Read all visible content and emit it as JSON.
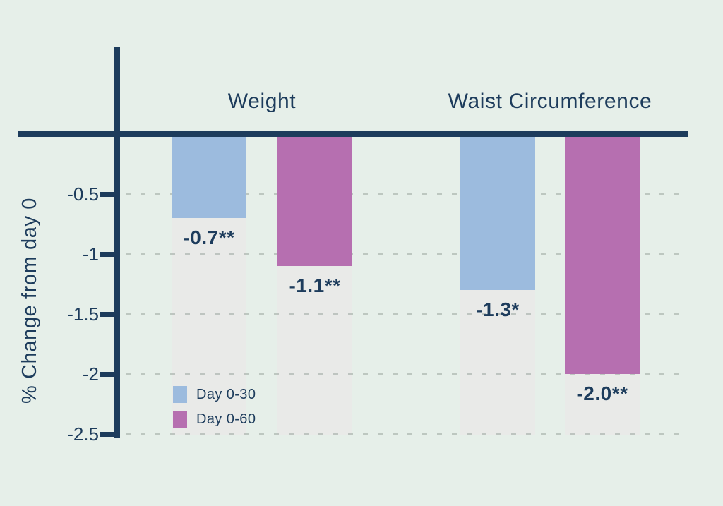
{
  "chart_data": {
    "type": "bar",
    "title": "",
    "ylabel": "% Change from day 0",
    "xlabel": "",
    "categories": [
      "Weight",
      "Waist Circumference"
    ],
    "series": [
      {
        "name": "Day 0-30",
        "color": "#9cbbde",
        "values": [
          -0.7,
          -1.3
        ],
        "labels": [
          "-0.7**",
          "-1.3*"
        ]
      },
      {
        "name": "Day 0-60",
        "color": "#b66fb0",
        "values": [
          -1.1,
          -2.0
        ],
        "labels": [
          "-1.1**",
          "-2.0**"
        ]
      }
    ],
    "y_ticks": [
      {
        "label": "-0.5",
        "value": -0.5
      },
      {
        "label": "-1",
        "value": -1.0
      },
      {
        "label": "-1.5",
        "value": -1.5
      },
      {
        "label": "-2",
        "value": -2.0
      },
      {
        "label": "-2.5",
        "value": -2.5
      }
    ],
    "ylim": [
      -2.5,
      0
    ],
    "grid": "horizontal-dashed",
    "legend_position": "bottom-left-inside-plot",
    "bar_shadow_note": "each bar has a light gray backdrop column extending to -2.5"
  },
  "colors": {
    "background": "#e6efe9",
    "axis": "#1d3c5c",
    "text": "#1d3c5c",
    "bar_day_0_30": "#9cbbde",
    "bar_day_0_60": "#b66fb0",
    "bar_shadow": "#e9eae8",
    "gridline": "#9ba69f"
  }
}
